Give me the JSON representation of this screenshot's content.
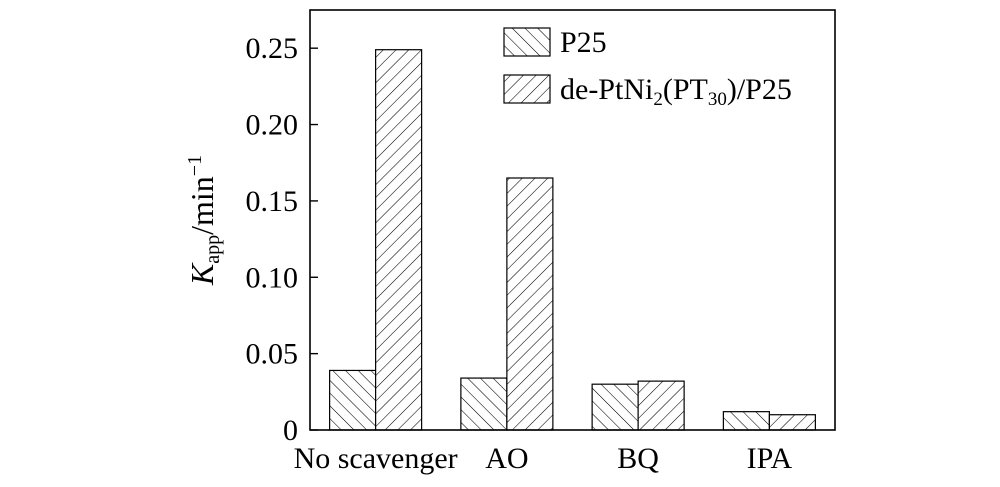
{
  "chart_data": {
    "type": "bar",
    "categories": [
      "No scavenger",
      "AO",
      "BQ",
      "IPA"
    ],
    "series": [
      {
        "name": "P25",
        "values": [
          0.039,
          0.034,
          0.03,
          0.012
        ]
      },
      {
        "name": "de-PtNi2(PT30)/P25",
        "values": [
          0.249,
          0.165,
          0.032,
          0.01
        ]
      }
    ],
    "ylabel": {
      "main": "K",
      "sub": "app",
      "rest": "/min",
      "sup": "−1"
    },
    "ylim": [
      0,
      0.275
    ],
    "yticks": [
      0,
      0.05,
      0.1,
      0.15,
      0.2,
      0.25
    ],
    "ytick_labels": [
      "0",
      "0.05",
      "0.10",
      "0.15",
      "0.20",
      "0.25"
    ],
    "legend_placement": "top-right",
    "legend": [
      {
        "parts": [
          {
            "t": "P25",
            "s": "normal"
          }
        ],
        "pattern": "backslash"
      },
      {
        "parts": [
          {
            "t": "de-PtNi",
            "s": "normal"
          },
          {
            "t": "2",
            "s": "sub"
          },
          {
            "t": "(PT",
            "s": "normal"
          },
          {
            "t": "30",
            "s": "sub"
          },
          {
            "t": ")/P25",
            "s": "normal"
          }
        ],
        "pattern": "slash"
      }
    ],
    "grid": false
  }
}
